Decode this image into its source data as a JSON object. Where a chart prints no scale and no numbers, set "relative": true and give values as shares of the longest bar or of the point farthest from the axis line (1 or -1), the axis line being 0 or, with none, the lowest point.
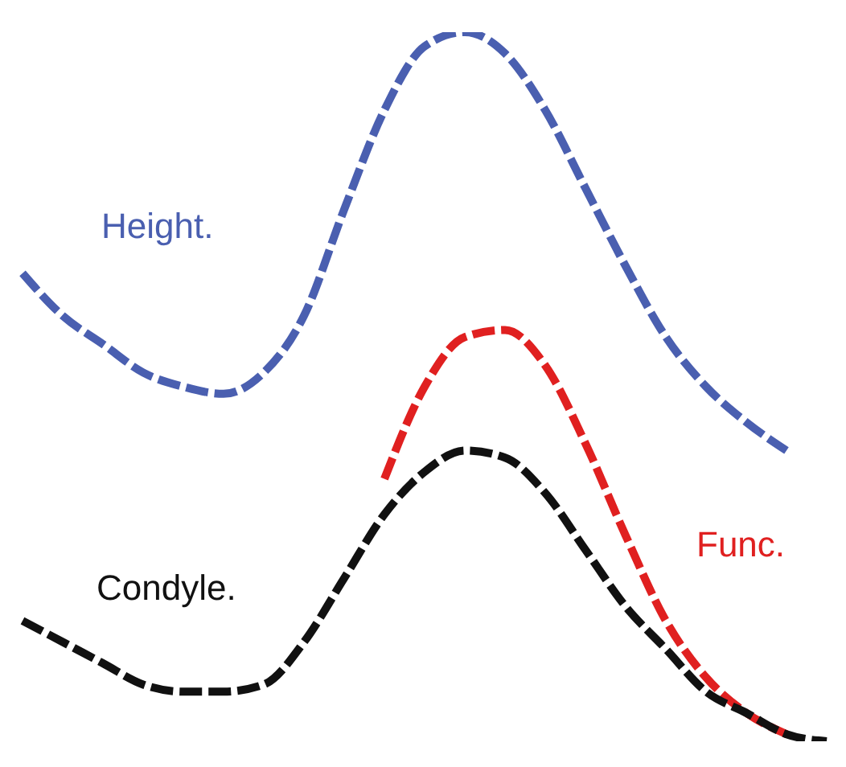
{
  "chart_data": {
    "type": "line",
    "relative": true,
    "categories": [
      null,
      null,
      null,
      null,
      null,
      null,
      null,
      null,
      null,
      null,
      null,
      null,
      null,
      null,
      null,
      null,
      null,
      null,
      null,
      null,
      null
    ],
    "line_style": "dashed",
    "marker": "none",
    "tick_labels": false,
    "series": [
      {
        "name": "Height.",
        "color": "#4a5fb0",
        "values": [
          0.66,
          0.6,
          0.56,
          0.52,
          0.5,
          0.49,
          0.52,
          0.6,
          0.75,
          0.89,
          0.98,
          1,
          0.97,
          0.89,
          0.78,
          0.67,
          0.57,
          0.5,
          0.45,
          0.41,
          null
        ]
      },
      {
        "name": "Func.",
        "color": "#e02020",
        "values": [
          null,
          null,
          null,
          null,
          null,
          null,
          null,
          null,
          null,
          0.37,
          0.5,
          0.57,
          0.58,
          0.53,
          0.42,
          0.29,
          0.17,
          0.09,
          0.04,
          0.01,
          null
        ]
      },
      {
        "name": "Condyle.",
        "color": "#111111",
        "values": [
          0.17,
          0.14,
          0.11,
          0.08,
          0.07,
          0.07,
          0.08,
          0.14,
          0.23,
          0.32,
          0.38,
          0.41,
          0.4,
          0.35,
          0.27,
          0.19,
          0.13,
          0.07,
          0.04,
          0.01,
          0
        ]
      }
    ]
  }
}
